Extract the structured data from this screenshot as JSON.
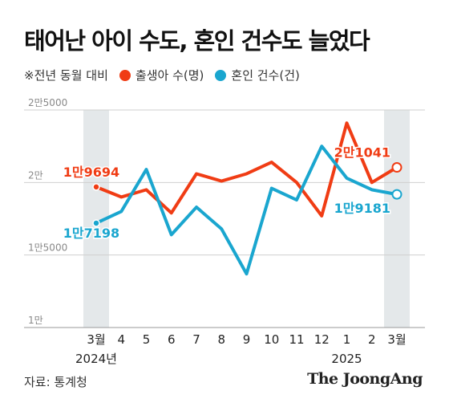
{
  "title": "태어난 아이 수도, 혼인 건수도 늘었다",
  "legend": {
    "note": "※전년 동월 대비",
    "items": [
      {
        "label": "출생아 수(명)",
        "color": "#f03c14"
      },
      {
        "label": "혼인 건수(건)",
        "color": "#1aa6cf"
      }
    ]
  },
  "source": "자료: 통계청",
  "brand": "The JoongAng",
  "chart_data": {
    "type": "line",
    "title": "태어난 아이 수도, 혼인 건수도 늘었다",
    "x": [
      "3월",
      "4",
      "5",
      "6",
      "7",
      "8",
      "9",
      "10",
      "11",
      "12",
      "1",
      "2",
      "3월"
    ],
    "year_labels": [
      {
        "index": 0,
        "text": "2024년"
      },
      {
        "index": 10,
        "text": "2025"
      }
    ],
    "y_ticks": [
      {
        "value": 10000,
        "label": "1만"
      },
      {
        "value": 15000,
        "label": "1만5000"
      },
      {
        "value": 20000,
        "label": "2만"
      },
      {
        "value": 25000,
        "label": "2만5000"
      }
    ],
    "ylim": [
      10000,
      25000
    ],
    "highlight_columns": [
      0,
      12
    ],
    "grid": true,
    "series": [
      {
        "name": "출생아 수(명)",
        "color": "#f03c14",
        "values": [
          19694,
          19000,
          19500,
          17900,
          20600,
          20100,
          20600,
          21400,
          20000,
          17700,
          24100,
          20000,
          21041
        ],
        "labels": [
          {
            "index": 0,
            "text": "1만9694"
          },
          {
            "index": 12,
            "text": "2만1041"
          }
        ]
      },
      {
        "name": "혼인 건수(건)",
        "color": "#1aa6cf",
        "values": [
          17198,
          18000,
          20900,
          16400,
          18300,
          16800,
          13700,
          19600,
          18800,
          22500,
          20300,
          19500,
          19181
        ],
        "labels": [
          {
            "index": 0,
            "text": "1만7198"
          },
          {
            "index": 12,
            "text": "1만9181"
          }
        ]
      }
    ]
  }
}
